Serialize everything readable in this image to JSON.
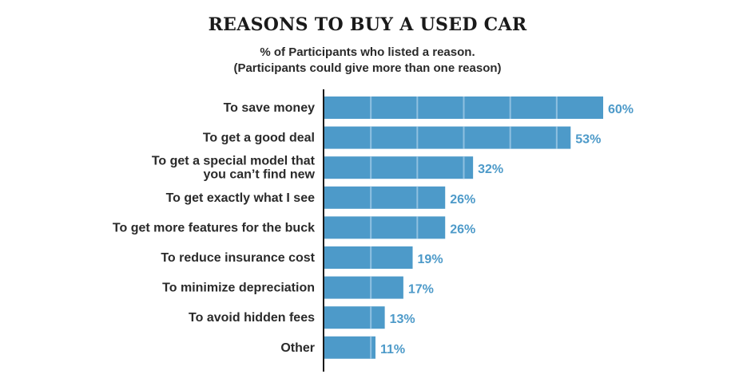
{
  "chart_data": {
    "type": "bar",
    "orientation": "horizontal",
    "title": "REASONS TO BUY A USED CAR",
    "subtitle_line1": "% of Participants who listed a reason.",
    "subtitle_line2": "(Participants could give more than one reason)",
    "categories": [
      [
        "To save money"
      ],
      [
        "To get a good deal"
      ],
      [
        "To get a special model that",
        "you can’t find new"
      ],
      [
        "To get exactly what I see"
      ],
      [
        "To get more features for the buck"
      ],
      [
        "To reduce insurance cost"
      ],
      [
        "To minimize depreciation"
      ],
      [
        "To avoid hidden fees"
      ],
      [
        "Other"
      ]
    ],
    "values": [
      60,
      53,
      32,
      26,
      26,
      19,
      17,
      13,
      11
    ],
    "value_labels": [
      "60%",
      "53%",
      "32%",
      "26%",
      "26%",
      "19%",
      "17%",
      "13%",
      "11%"
    ],
    "xlim": [
      0,
      60
    ],
    "grid_lines_inside_bars_at": [
      10,
      20,
      30,
      40,
      50
    ],
    "bar_color": "#4d9ac9",
    "value_label_color": "#4d9ac9",
    "grid_color": "#8fc0e0"
  }
}
